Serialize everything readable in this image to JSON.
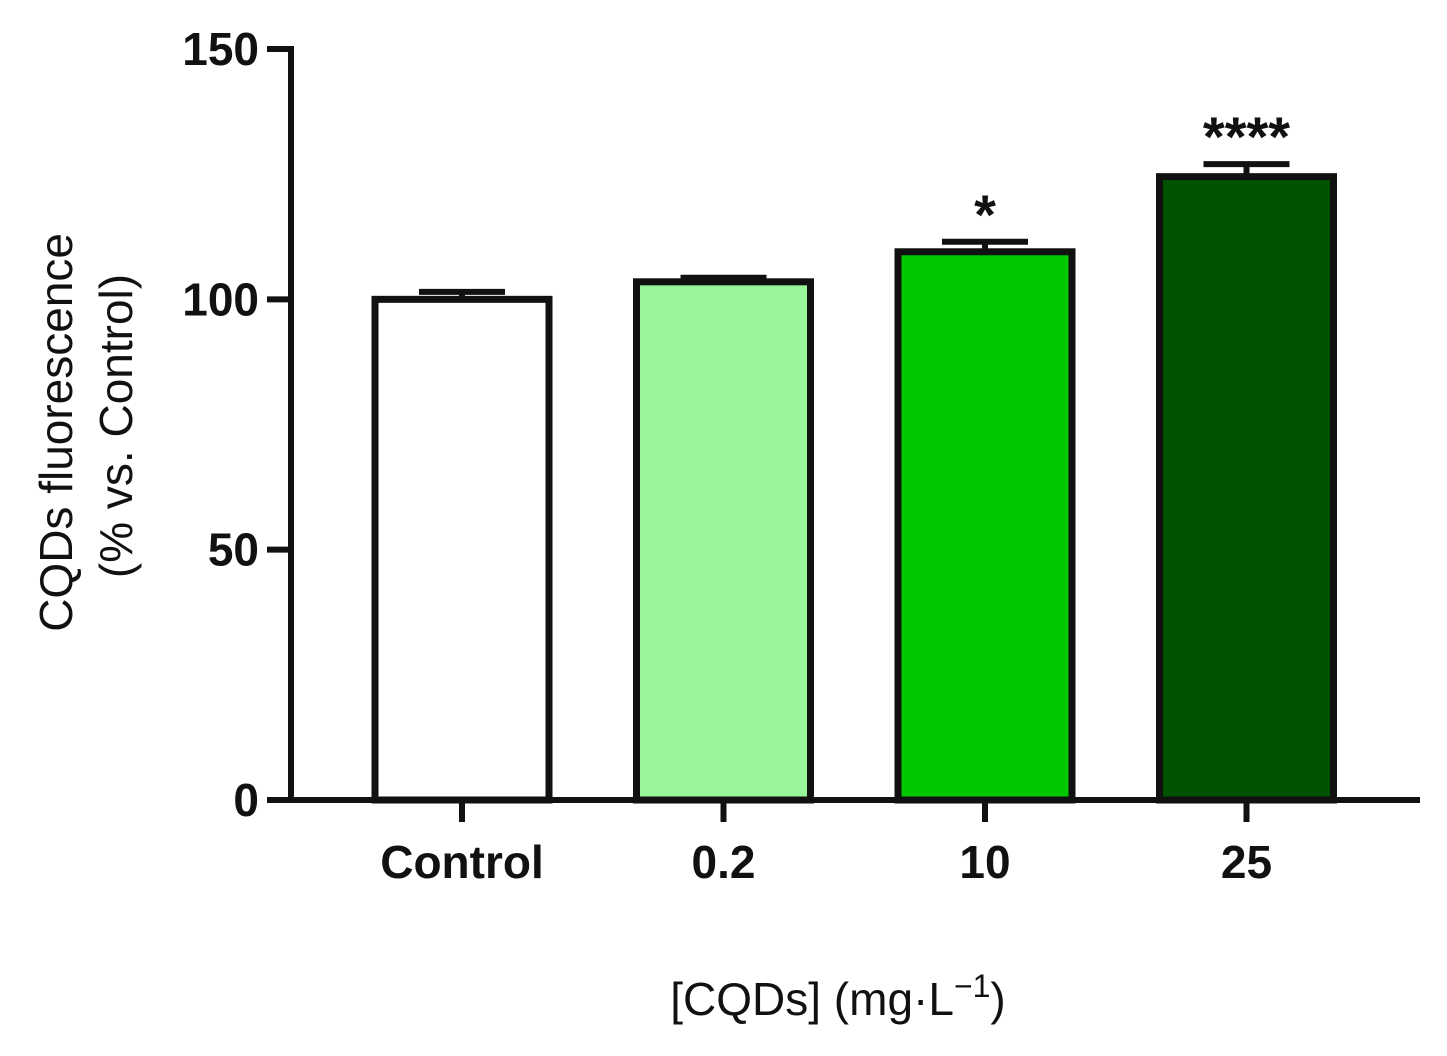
{
  "chart_data": {
    "type": "bar",
    "title": "",
    "categories": [
      "Control",
      "0.2",
      "10",
      "25"
    ],
    "values": [
      100,
      103.5,
      109.5,
      124.5
    ],
    "errors": [
      1.5,
      0.8,
      2.0,
      2.5
    ],
    "significance": [
      "",
      "",
      "*",
      "****"
    ],
    "colors": [
      "#ffffff",
      "#99f599",
      "#00c800",
      "#005400"
    ],
    "ylabel_line1": "CQDs fluorescence",
    "ylabel_line2": "(% vs. Control)",
    "xlabel_main": "[CQDs] (mg·L",
    "xlabel_sup": "−1",
    "xlabel_close": ")",
    "ylim": [
      0,
      150
    ],
    "yticks": [
      0,
      50,
      100,
      150
    ],
    "grid": false,
    "legend": "none"
  }
}
